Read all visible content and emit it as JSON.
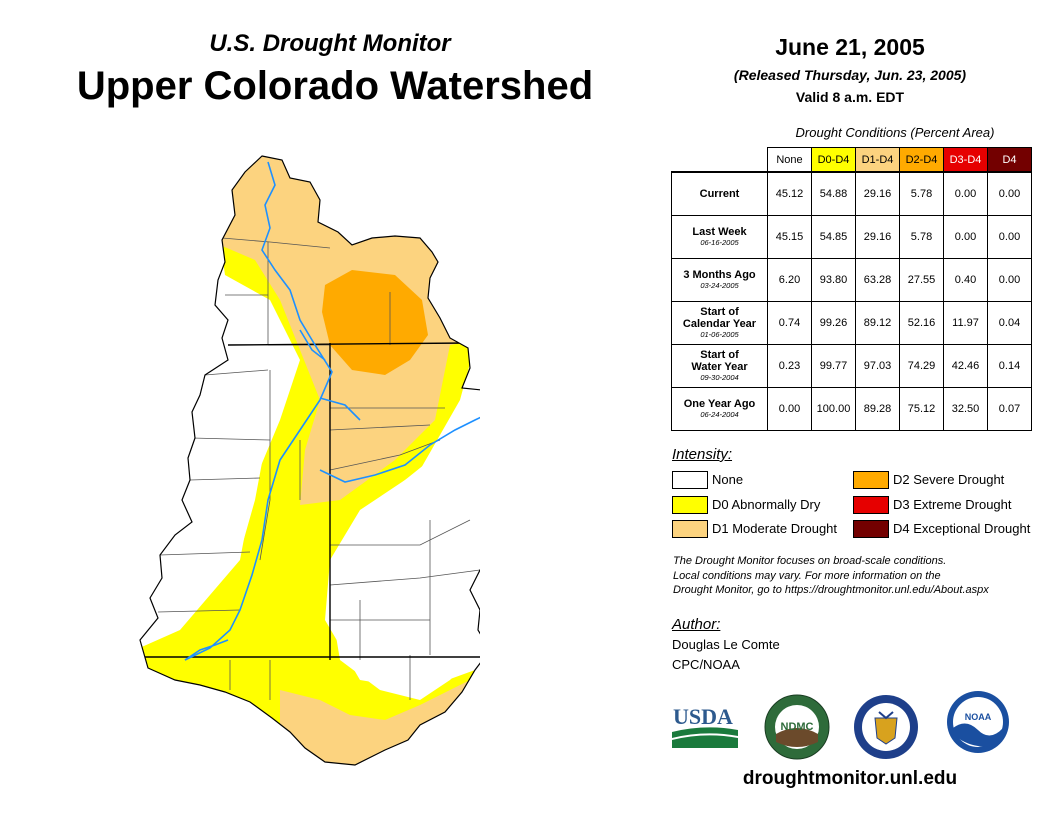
{
  "header": {
    "subtitle": "U.S. Drought Monitor",
    "title": "Upper Colorado Watershed",
    "date": "June 21, 2005",
    "released": "(Released Thursday, Jun. 23, 2005)",
    "valid": "Valid 8 a.m. EDT"
  },
  "table": {
    "caption": "Drought Conditions (Percent Area)",
    "columns": [
      "None",
      "D0-D4",
      "D1-D4",
      "D2-D4",
      "D3-D4",
      "D4"
    ],
    "column_colors": [
      "#ffffff",
      "#ffff00",
      "#fcd37f",
      "#ffaa00",
      "#e60000",
      "#730000"
    ],
    "rows": [
      {
        "label": "Current",
        "date": "",
        "values": [
          "45.12",
          "54.88",
          "29.16",
          "5.78",
          "0.00",
          "0.00"
        ]
      },
      {
        "label": "Last Week",
        "date": "06-16-2005",
        "values": [
          "45.15",
          "54.85",
          "29.16",
          "5.78",
          "0.00",
          "0.00"
        ]
      },
      {
        "label": "3 Months Ago",
        "date": "03-24-2005",
        "values": [
          "6.20",
          "93.80",
          "63.28",
          "27.55",
          "0.40",
          "0.00"
        ]
      },
      {
        "label": "Start of Calendar Year",
        "date": "01-06-2005",
        "values": [
          "0.74",
          "99.26",
          "89.12",
          "52.16",
          "11.97",
          "0.04"
        ]
      },
      {
        "label": "Start of Water Year",
        "date": "09-30-2004",
        "values": [
          "0.23",
          "99.77",
          "97.03",
          "74.29",
          "42.46",
          "0.14"
        ]
      },
      {
        "label": "One Year Ago",
        "date": "06-24-2004",
        "values": [
          "0.00",
          "100.00",
          "89.28",
          "75.12",
          "32.50",
          "0.07"
        ]
      }
    ]
  },
  "legend": {
    "title": "Intensity:",
    "items": [
      {
        "label": "None",
        "color": "#ffffff"
      },
      {
        "label": "D0 Abnormally Dry",
        "color": "#ffff00"
      },
      {
        "label": "D1 Moderate Drought",
        "color": "#fcd37f"
      },
      {
        "label": "D2 Severe Drought",
        "color": "#ffaa00"
      },
      {
        "label": "D3 Extreme Drought",
        "color": "#e60000"
      },
      {
        "label": "D4 Exceptional Drought",
        "color": "#730000"
      }
    ]
  },
  "note": {
    "line1": "The Drought Monitor focuses on broad-scale conditions.",
    "line2": "Local conditions may vary. For more information on the",
    "line3": "Drought Monitor, go to https://droughtmonitor.unl.edu/About.aspx"
  },
  "author": {
    "title": "Author:",
    "name": "Douglas Le Comte",
    "org": "CPC/NOAA"
  },
  "logos": {
    "usda": "USDA",
    "ndmc": "NDMC",
    "noaa": "NOAA"
  },
  "website": "droughtmonitor.unl.edu",
  "colors": {
    "river": "#1e90ff",
    "boundary": "#000000",
    "county_line": "#555555"
  }
}
